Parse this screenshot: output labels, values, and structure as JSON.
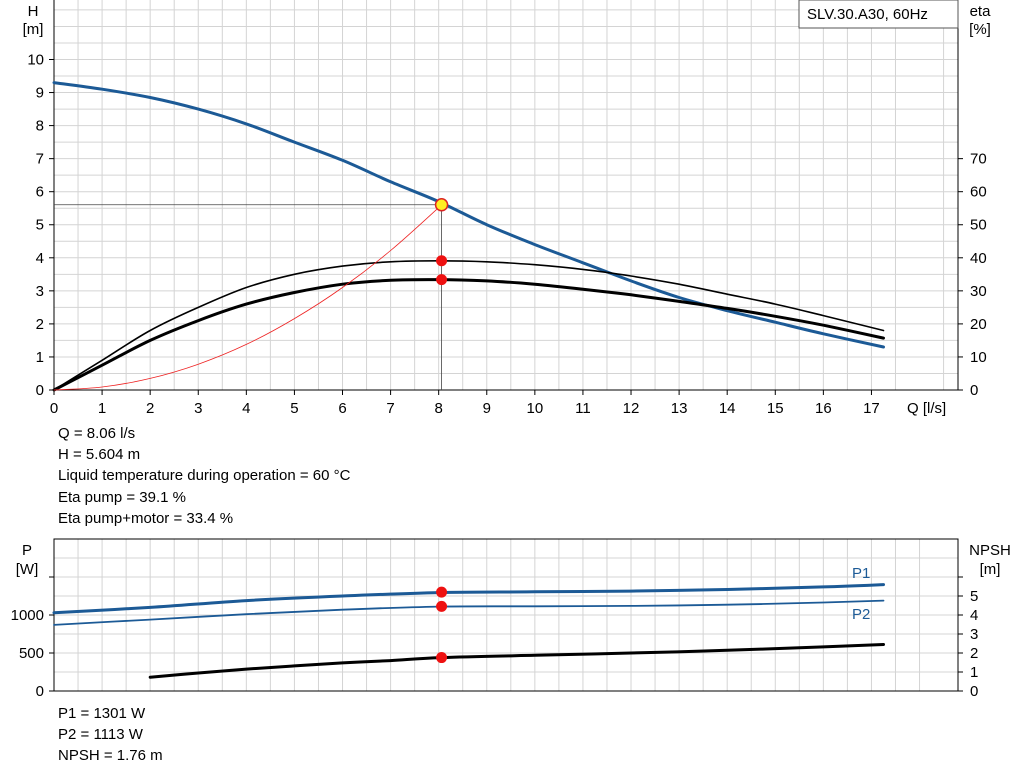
{
  "chart_data": [
    {
      "type": "line",
      "legend_box": "SLV.30.A30, 60Hz",
      "y_label_left": "H",
      "y_unit_left": "[m]",
      "y_label_right": "eta",
      "y_unit_right": "[%]",
      "x_label": "Q [l/s]",
      "xlim": [
        0,
        18.8
      ],
      "ylim_left": [
        0,
        11.8
      ],
      "ylim_right": [
        0,
        118
      ],
      "x_ticks": [
        0,
        1,
        2,
        3,
        4,
        5,
        6,
        7,
        8,
        9,
        10,
        11,
        12,
        13,
        14,
        15,
        16,
        17
      ],
      "y_ticks_left": [
        0,
        1,
        2,
        3,
        4,
        5,
        6,
        7,
        8,
        9,
        10
      ],
      "y_ticks_right": [
        0,
        10,
        20,
        30,
        40,
        50,
        60,
        70
      ],
      "grid": true,
      "series": [
        {
          "color": "#1c5a96",
          "axis": "left",
          "width": 3,
          "x": [
            0,
            1,
            2,
            3,
            4,
            5,
            6,
            7,
            8,
            9,
            10,
            11,
            12,
            13,
            14,
            15,
            16,
            17.25
          ],
          "y": [
            9.3,
            9.1,
            8.85,
            8.5,
            8.05,
            7.5,
            6.95,
            6.3,
            5.7,
            5.0,
            4.4,
            3.85,
            3.3,
            2.8,
            2.4,
            2.05,
            1.7,
            1.3
          ]
        },
        {
          "color": "#000000",
          "axis": "right",
          "width": 1.6,
          "x": [
            0,
            1,
            2,
            3,
            4,
            5,
            6,
            7,
            8,
            9,
            10,
            11,
            12,
            13,
            14,
            15,
            16,
            17.25
          ],
          "y": [
            0,
            9,
            18,
            25,
            31,
            35,
            37.5,
            38.8,
            39.1,
            38.8,
            37.9,
            36.5,
            34.5,
            32,
            29,
            26,
            22.5,
            18
          ]
        },
        {
          "color": "#000000",
          "axis": "right",
          "width": 3,
          "x": [
            0,
            1,
            2,
            3,
            4,
            5,
            6,
            7,
            8,
            9,
            10,
            11,
            12,
            13,
            14,
            15,
            16,
            17.25
          ],
          "y": [
            0,
            7.5,
            15,
            21,
            26,
            29.5,
            32,
            33.2,
            33.4,
            33,
            32,
            30.5,
            28.8,
            26.8,
            24.7,
            22.3,
            19.6,
            15.7
          ]
        },
        {
          "color": "#ee2222",
          "axis": "left",
          "width": 0.8,
          "x": [
            0,
            1,
            2,
            3,
            4,
            5,
            6,
            7,
            8.06
          ],
          "y": [
            0,
            0.09,
            0.35,
            0.78,
            1.38,
            2.16,
            3.1,
            4.22,
            5.6
          ]
        }
      ],
      "operating_point": {
        "q": 8.06,
        "h": 5.604,
        "eta_pump": 39.1,
        "eta_total": 33.4
      }
    },
    {
      "type": "line",
      "y_label_left": "P",
      "y_unit_left": "[W]",
      "y_label_right": "NPSH",
      "y_unit_right": "[m]",
      "xlim": [
        0,
        18.8
      ],
      "ylim_left": [
        0,
        2000
      ],
      "ylim_right": [
        0,
        8
      ],
      "y_ticks_left": [
        0,
        500,
        1000
      ],
      "y_ticks_right": [
        0,
        1,
        2,
        3,
        4,
        5
      ],
      "grid": true,
      "series": [
        {
          "name": "P1",
          "color": "#1c5a96",
          "axis": "left",
          "width": 3,
          "x": [
            0,
            2,
            4,
            6,
            8,
            10,
            12,
            14,
            16,
            17.25
          ],
          "y": [
            1030,
            1100,
            1190,
            1250,
            1295,
            1305,
            1315,
            1335,
            1370,
            1400
          ]
        },
        {
          "name": "P2",
          "color": "#1c5a96",
          "axis": "left",
          "width": 1.8,
          "x": [
            0,
            2,
            4,
            6,
            8,
            10,
            12,
            14,
            16,
            17.25
          ],
          "y": [
            870,
            940,
            1010,
            1070,
            1110,
            1115,
            1120,
            1135,
            1165,
            1190
          ]
        },
        {
          "color": "#000000",
          "axis": "right",
          "width": 3,
          "x": [
            2,
            3,
            4,
            5,
            6,
            7,
            8.06,
            10,
            12,
            14,
            16,
            17.25
          ],
          "y": [
            0.72,
            0.95,
            1.15,
            1.32,
            1.48,
            1.6,
            1.76,
            1.88,
            2.0,
            2.14,
            2.32,
            2.45
          ]
        }
      ],
      "operating_point": {
        "q": 8.06,
        "p1": 1301,
        "p2": 1113,
        "npsh": 1.76
      }
    }
  ],
  "info_top": [
    "Q = 8.06 l/s",
    "H = 5.604 m",
    "Liquid temperature during operation = 60 °C",
    "Eta pump = 39.1 %",
    "Eta pump+motor = 33.4 %"
  ],
  "info_bottom": [
    "P1 = 1301 W",
    "P2 = 1113 W",
    "NPSH = 1.76 m"
  ]
}
